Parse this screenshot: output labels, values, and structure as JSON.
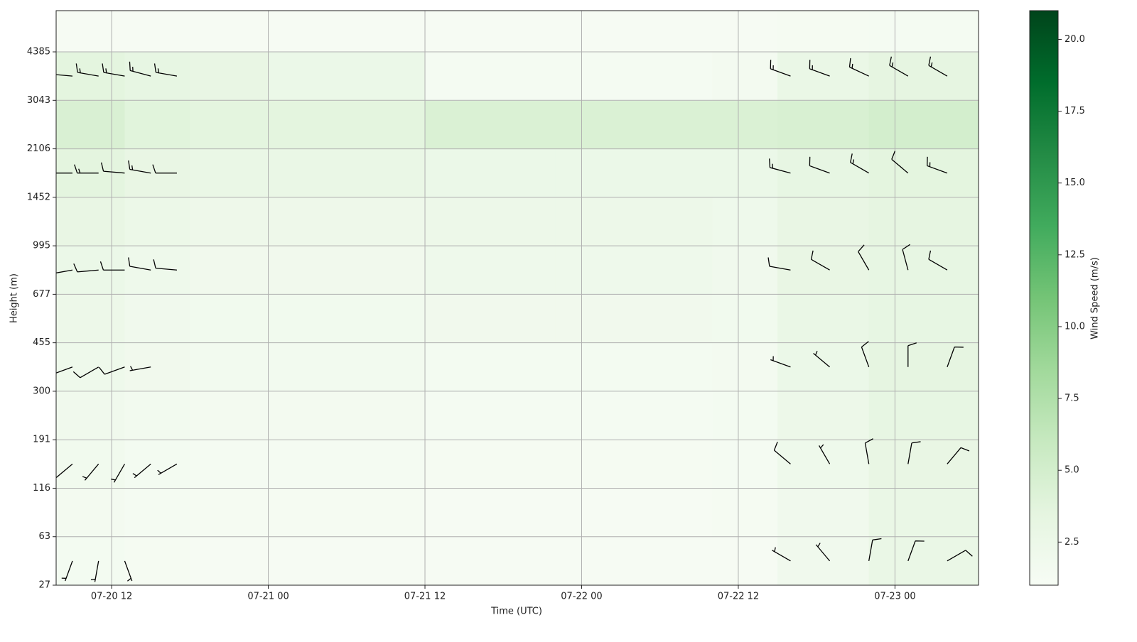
{
  "chart_data": {
    "type": "heatmap-barbs",
    "xlabel": "Time (UTC)",
    "ylabel": "Height (m)",
    "colorbar_label": "Wind Speed (m/s)",
    "colormap": [
      "#f7fcf5",
      "#e5f5e0",
      "#c7e9c0",
      "#a1d99b",
      "#74c476",
      "#41ab5d",
      "#238b45",
      "#006d2c",
      "#00441b"
    ],
    "grid": true,
    "xlim": [
      7.75,
      78.4
    ],
    "xticks": [
      {
        "value": 12,
        "label": "07-20 12"
      },
      {
        "value": 24,
        "label": "07-21 00"
      },
      {
        "value": 36,
        "label": "07-21 12"
      },
      {
        "value": 48,
        "label": "07-22 00"
      },
      {
        "value": 60,
        "label": "07-22 12"
      },
      {
        "value": 72,
        "label": "07-23 00"
      }
    ],
    "ylim": [
      0,
      11.85
    ],
    "yticks": [
      {
        "value": 0,
        "label": "27"
      },
      {
        "value": 1,
        "label": "63"
      },
      {
        "value": 2,
        "label": "116"
      },
      {
        "value": 3,
        "label": "191"
      },
      {
        "value": 4,
        "label": "300"
      },
      {
        "value": 5,
        "label": "455"
      },
      {
        "value": 6,
        "label": "677"
      },
      {
        "value": 7,
        "label": "995"
      },
      {
        "value": 8,
        "label": "1452"
      },
      {
        "value": 9,
        "label": "2106"
      },
      {
        "value": 10,
        "label": "3043"
      },
      {
        "value": 11,
        "label": "4385"
      }
    ],
    "clim": [
      1.0,
      21.0
    ],
    "cticks": [
      {
        "value": 2.5,
        "label": "2.5"
      },
      {
        "value": 5,
        "label": "5.0"
      },
      {
        "value": 7.5,
        "label": "7.5"
      },
      {
        "value": 10,
        "label": "10.0"
      },
      {
        "value": 12.5,
        "label": "12.5"
      },
      {
        "value": 15,
        "label": "15.0"
      },
      {
        "value": 17.5,
        "label": "17.5"
      },
      {
        "value": 20,
        "label": "20.0"
      }
    ],
    "xbins": [
      7.75,
      13,
      18,
      24,
      30,
      36,
      40,
      46,
      52,
      58,
      63,
      70,
      78.4
    ],
    "ybins": [
      0,
      1,
      2,
      3,
      4,
      5,
      6,
      7,
      8,
      9,
      10,
      11,
      11.85
    ],
    "z": [
      [
        1.5,
        1.3,
        1.2,
        1.2,
        1.2,
        1.2,
        1.2,
        1.2,
        1.2,
        1.2,
        2.0,
        2.8
      ],
      [
        1.6,
        1.4,
        1.3,
        1.3,
        1.3,
        1.2,
        1.2,
        1.2,
        1.2,
        1.3,
        2.0,
        2.8
      ],
      [
        1.8,
        1.5,
        1.4,
        1.4,
        1.4,
        1.3,
        1.3,
        1.3,
        1.3,
        1.4,
        2.2,
        3.0
      ],
      [
        2.0,
        1.7,
        1.6,
        1.6,
        1.6,
        1.4,
        1.4,
        1.4,
        1.4,
        1.5,
        2.4,
        3.2
      ],
      [
        2.2,
        1.9,
        1.7,
        1.7,
        1.7,
        1.5,
        1.5,
        1.5,
        1.5,
        1.6,
        2.6,
        3.4
      ],
      [
        2.4,
        2.0,
        1.8,
        1.8,
        1.8,
        1.9,
        1.9,
        1.9,
        1.9,
        1.8,
        2.8,
        3.2
      ],
      [
        2.6,
        2.2,
        1.9,
        1.9,
        1.9,
        2.2,
        2.2,
        2.2,
        2.2,
        2.0,
        3.0,
        3.2
      ],
      [
        3.0,
        2.5,
        2.3,
        2.3,
        2.3,
        2.4,
        2.4,
        2.4,
        2.4,
        2.2,
        3.0,
        3.4
      ],
      [
        3.6,
        3.0,
        2.8,
        2.8,
        2.8,
        2.6,
        2.6,
        2.6,
        2.6,
        2.6,
        3.2,
        3.6
      ],
      [
        4.5,
        3.8,
        3.6,
        3.6,
        3.6,
        4.4,
        4.4,
        4.4,
        4.4,
        4.4,
        4.6,
        5.0
      ],
      [
        3.6,
        3.2,
        3.0,
        2.6,
        2.6,
        1.4,
        1.4,
        1.4,
        1.4,
        1.6,
        2.8,
        3.4
      ],
      [
        1.2,
        1.2,
        1.2,
        1.2,
        1.2,
        1.2,
        1.2,
        1.2,
        1.2,
        1.2,
        1.3,
        1.4
      ]
    ],
    "barb_levels": [
      0.5,
      2.5,
      4.5,
      6.5,
      8.5,
      10.5
    ],
    "barbs": [
      {
        "x": 9,
        "speed": [
          8,
          10,
          12,
          10,
          15,
          18
        ],
        "direction": [
          200,
          230,
          250,
          260,
          270,
          275
        ]
      },
      {
        "x": 11,
        "speed": [
          6,
          9,
          11,
          12,
          16,
          18
        ],
        "direction": [
          190,
          220,
          240,
          265,
          270,
          280
        ]
      },
      {
        "x": 13,
        "speed": [
          7,
          8,
          10,
          10,
          14,
          16
        ],
        "direction": [
          160,
          210,
          250,
          270,
          275,
          280
        ]
      },
      {
        "x": 15,
        "speed": [
          null,
          7,
          9,
          12,
          15,
          17
        ],
        "direction": [
          null,
          230,
          260,
          280,
          280,
          285
        ]
      },
      {
        "x": 17,
        "speed": [
          null,
          6,
          null,
          10,
          14,
          16
        ],
        "direction": [
          null,
          240,
          null,
          275,
          270,
          280
        ]
      },
      {
        "x": 64,
        "speed": [
          8,
          10,
          9,
          12,
          16,
          18
        ],
        "direction": [
          300,
          310,
          290,
          280,
          285,
          290
        ]
      },
      {
        "x": 67,
        "speed": [
          6,
          9,
          8,
          10,
          14,
          17
        ],
        "direction": [
          320,
          330,
          310,
          300,
          290,
          290
        ]
      },
      {
        "x": 70,
        "speed": [
          10,
          12,
          11,
          12,
          15,
          18
        ],
        "direction": [
          10,
          350,
          340,
          330,
          300,
          295
        ]
      },
      {
        "x": 73,
        "speed": [
          14,
          12,
          12,
          11,
          14,
          16
        ],
        "direction": [
          20,
          10,
          0,
          345,
          310,
          300
        ]
      },
      {
        "x": 76,
        "speed": [
          12,
          11,
          10,
          12,
          15,
          18
        ],
        "direction": [
          60,
          40,
          20,
          300,
          290,
          300
        ]
      }
    ]
  }
}
